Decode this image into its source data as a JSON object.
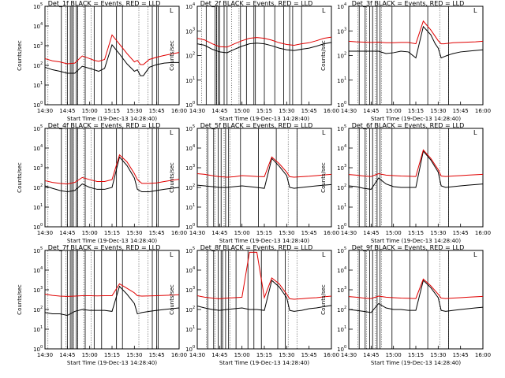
{
  "start_time_label": "Start Time (19-Dec-13 14:28:40)",
  "ylabel": "Counts/sec",
  "xticks": [
    "14:30",
    "14:45",
    "15:00",
    "15:15",
    "15:30",
    "15:45",
    "16:00"
  ],
  "legend_glyph": "L",
  "colors": {
    "events": "#000000",
    "lld": "#e00000",
    "frame": "#000000",
    "background": "#ffffff"
  },
  "chart_data": [
    {
      "type": "line",
      "title": "Det_1f BLACK = Events, RED = LLD",
      "ylim_log10": [
        0,
        5
      ],
      "ytick_exponents": [
        0,
        1,
        2,
        3,
        4,
        5
      ],
      "x_minutes": [
        0,
        5,
        10,
        15,
        20,
        25,
        30,
        33,
        36,
        40,
        45,
        50,
        55,
        60,
        62,
        64,
        66,
        70,
        75,
        80,
        85,
        90
      ],
      "series": [
        {
          "name": "Events",
          "values": [
            80,
            60,
            50,
            40,
            40,
            90,
            70,
            60,
            50,
            70,
            1100,
            380,
            120,
            50,
            60,
            30,
            30,
            80,
            110,
            130,
            140,
            140
          ]
        },
        {
          "name": "LLD",
          "values": [
            220,
            170,
            150,
            120,
            130,
            300,
            220,
            180,
            160,
            200,
            3500,
            1200,
            400,
            150,
            180,
            110,
            110,
            200,
            260,
            320,
            380,
            450
          ]
        }
      ],
      "shaded": [
        [
          2,
          14
        ],
        [
          19,
          22
        ],
        [
          26,
          31
        ],
        [
          63,
          69
        ]
      ],
      "vlines": [
        11,
        15,
        17,
        18,
        19,
        21,
        22,
        27,
        33,
        38,
        48,
        52,
        72,
        75,
        76
      ]
    },
    {
      "type": "line",
      "title": "Det_2f BLACK = Events, RED = LLD",
      "ylim_log10": [
        0,
        4
      ],
      "ytick_exponents": [
        0,
        1,
        2,
        3,
        4
      ],
      "x_minutes": [
        0,
        5,
        10,
        15,
        20,
        25,
        30,
        35,
        40,
        45,
        50,
        55,
        60,
        65,
        70,
        75,
        80,
        85,
        90
      ],
      "series": [
        {
          "name": "Events",
          "values": [
            300,
            260,
            180,
            140,
            130,
            180,
            240,
            300,
            320,
            300,
            250,
            200,
            170,
            160,
            180,
            200,
            240,
            300,
            340
          ]
        },
        {
          "name": "LLD",
          "values": [
            500,
            430,
            300,
            230,
            220,
            300,
            400,
            500,
            540,
            500,
            420,
            330,
            280,
            260,
            300,
            330,
            400,
            500,
            560
          ]
        }
      ],
      "shaded": [
        [
          3,
          13
        ],
        [
          23,
          28
        ]
      ],
      "vlines": [
        6,
        12,
        13,
        14,
        15,
        18,
        20,
        29,
        33,
        38,
        39,
        45,
        52,
        58,
        62,
        64,
        70
      ]
    },
    {
      "type": "line",
      "title": "Det_3f BLACK = Events, RED = LLD",
      "ylim_log10": [
        0,
        4
      ],
      "ytick_exponents": [
        0,
        1,
        2,
        3,
        4
      ],
      "x_minutes": [
        0,
        5,
        10,
        15,
        20,
        25,
        30,
        35,
        40,
        45,
        50,
        55,
        58,
        60,
        62,
        64,
        66,
        68,
        70,
        75,
        80,
        85,
        90
      ],
      "series": [
        {
          "name": "Events",
          "values": [
            150,
            150,
            150,
            150,
            150,
            120,
            130,
            150,
            140,
            80,
            1500,
            700,
            300,
            200,
            80,
            90,
            100,
            110,
            120,
            140,
            150,
            160,
            170
          ]
        },
        {
          "name": "LLD",
          "values": [
            380,
            360,
            350,
            340,
            350,
            330,
            330,
            340,
            340,
            300,
            2500,
            1100,
            600,
            400,
            300,
            300,
            310,
            320,
            330,
            340,
            350,
            360,
            380
          ]
        }
      ],
      "shaded": [
        [
          6,
          12
        ],
        [
          18,
          22
        ],
        [
          61,
          67
        ]
      ],
      "vlines": [
        7,
        11,
        14,
        16,
        19,
        21,
        29,
        41,
        53,
        67
      ]
    },
    {
      "type": "line",
      "title": "Det_4f BLACK = Events, RED = LLD",
      "ylim_log10": [
        0,
        5
      ],
      "ytick_exponents": [
        0,
        1,
        2,
        3,
        4,
        5
      ],
      "x_minutes": [
        0,
        5,
        10,
        15,
        20,
        25,
        30,
        35,
        40,
        45,
        50,
        55,
        60,
        62,
        65,
        70,
        75,
        80,
        85,
        90
      ],
      "series": [
        {
          "name": "Events",
          "values": [
            120,
            90,
            70,
            60,
            70,
            150,
            100,
            80,
            80,
            100,
            3500,
            1300,
            300,
            80,
            60,
            60,
            70,
            80,
            90,
            100
          ]
        },
        {
          "name": "LLD",
          "values": [
            220,
            180,
            160,
            150,
            180,
            320,
            250,
            200,
            200,
            250,
            4500,
            2000,
            500,
            250,
            160,
            160,
            170,
            200,
            230,
            260
          ]
        }
      ],
      "shaded": [
        [
          2,
          14
        ],
        [
          19,
          22
        ],
        [
          26,
          31
        ],
        [
          63,
          69
        ]
      ],
      "vlines": [
        11,
        15,
        17,
        18,
        19,
        21,
        22,
        27,
        33,
        38,
        48,
        52,
        72,
        75,
        76
      ]
    },
    {
      "type": "line",
      "title": "Det_5f BLACK = Events, RED = LLD",
      "ylim_log10": [
        0,
        5
      ],
      "ytick_exponents": [
        0,
        1,
        2,
        3,
        4,
        5
      ],
      "x_minutes": [
        0,
        5,
        10,
        15,
        20,
        25,
        30,
        35,
        40,
        45,
        50,
        55,
        60,
        62,
        65,
        70,
        75,
        80,
        85,
        90
      ],
      "series": [
        {
          "name": "Events",
          "values": [
            130,
            120,
            110,
            100,
            100,
            110,
            120,
            110,
            100,
            90,
            3000,
            1200,
            400,
            100,
            90,
            100,
            110,
            120,
            130,
            140
          ]
        },
        {
          "name": "LLD",
          "values": [
            500,
            460,
            400,
            350,
            330,
            350,
            400,
            380,
            360,
            350,
            3500,
            1600,
            600,
            350,
            330,
            350,
            370,
            400,
            430,
            460
          ]
        }
      ],
      "shaded": [
        [
          6,
          12
        ],
        [
          18,
          22
        ],
        [
          61,
          67
        ]
      ],
      "vlines": [
        7,
        11,
        14,
        16,
        19,
        21,
        29,
        41,
        53,
        67
      ]
    },
    {
      "type": "line",
      "title": "Det_6f BLACK = Events, RED = LLD",
      "ylim_log10": [
        0,
        5
      ],
      "ytick_exponents": [
        0,
        1,
        2,
        3,
        4,
        5
      ],
      "x_minutes": [
        0,
        5,
        10,
        15,
        20,
        25,
        30,
        35,
        40,
        45,
        50,
        55,
        60,
        62,
        65,
        70,
        75,
        80,
        85,
        90
      ],
      "series": [
        {
          "name": "Events",
          "values": [
            120,
            110,
            90,
            80,
            300,
            150,
            110,
            100,
            100,
            100,
            7000,
            2500,
            600,
            120,
            100,
            110,
            120,
            130,
            140,
            150
          ]
        },
        {
          "name": "LLD",
          "values": [
            450,
            420,
            380,
            360,
            500,
            420,
            400,
            380,
            370,
            360,
            8000,
            3000,
            800,
            380,
            360,
            380,
            400,
            420,
            440,
            460
          ]
        }
      ],
      "shaded": [
        [
          6,
          12
        ],
        [
          18,
          22
        ],
        [
          61,
          67
        ]
      ],
      "vlines": [
        7,
        11,
        14,
        16,
        19,
        21,
        29,
        41,
        53,
        67
      ]
    },
    {
      "type": "line",
      "title": "Det_7f BLACK = Events, RED = LLD",
      "ylim_log10": [
        0,
        5
      ],
      "ytick_exponents": [
        0,
        1,
        2,
        3,
        4,
        5
      ],
      "x_minutes": [
        0,
        5,
        10,
        15,
        20,
        25,
        30,
        35,
        40,
        45,
        50,
        55,
        60,
        62,
        65,
        70,
        75,
        80,
        85,
        90
      ],
      "series": [
        {
          "name": "Events",
          "values": [
            70,
            60,
            60,
            50,
            80,
            100,
            90,
            90,
            90,
            80,
            1500,
            600,
            200,
            60,
            70,
            80,
            90,
            100,
            110,
            120
          ]
        },
        {
          "name": "LLD",
          "values": [
            600,
            520,
            480,
            460,
            480,
            500,
            500,
            490,
            500,
            500,
            2000,
            1200,
            700,
            500,
            480,
            490,
            500,
            520,
            540,
            560
          ]
        }
      ],
      "shaded": [
        [
          2,
          14
        ],
        [
          19,
          22
        ],
        [
          26,
          31
        ],
        [
          63,
          69
        ]
      ],
      "vlines": [
        11,
        15,
        17,
        18,
        19,
        21,
        22,
        27,
        33,
        38,
        48,
        52,
        72,
        75,
        76
      ]
    },
    {
      "type": "line",
      "title": "Det_8f BLACK = Events, RED = LLD",
      "ylim_log10": [
        0,
        5
      ],
      "ytick_exponents": [
        0,
        1,
        2,
        3,
        4,
        5
      ],
      "x_minutes": [
        0,
        5,
        10,
        15,
        20,
        25,
        30,
        35,
        40,
        45,
        50,
        55,
        60,
        62,
        65,
        70,
        75,
        80,
        85,
        90
      ],
      "series": [
        {
          "name": "Events",
          "values": [
            150,
            120,
            100,
            90,
            100,
            110,
            120,
            100,
            100,
            90,
            3000,
            1400,
            400,
            90,
            80,
            90,
            110,
            120,
            140,
            160
          ]
        },
        {
          "name": "LLD",
          "values": [
            500,
            420,
            380,
            350,
            380,
            400,
            420,
            80000,
            80000,
            400,
            4000,
            2000,
            600,
            350,
            330,
            350,
            380,
            400,
            440,
            480
          ]
        }
      ],
      "shaded": [
        [
          6,
          12
        ],
        [
          17,
          22
        ],
        [
          61,
          67
        ]
      ],
      "vlines": [
        7,
        11,
        14,
        16,
        17,
        19,
        21,
        26,
        34,
        38,
        43,
        54,
        59
      ]
    },
    {
      "type": "line",
      "title": "Det_9f BLACK = Events, RED = LLD",
      "ylim_log10": [
        0,
        5
      ],
      "ytick_exponents": [
        0,
        1,
        2,
        3,
        4,
        5
      ],
      "x_minutes": [
        0,
        5,
        10,
        15,
        20,
        25,
        30,
        35,
        40,
        45,
        50,
        55,
        60,
        62,
        65,
        70,
        75,
        80,
        85,
        90
      ],
      "series": [
        {
          "name": "Events",
          "values": [
            100,
            90,
            80,
            70,
            200,
            120,
            100,
            100,
            90,
            90,
            3000,
            1300,
            400,
            90,
            80,
            90,
            100,
            110,
            120,
            130
          ]
        },
        {
          "name": "LLD",
          "values": [
            450,
            420,
            380,
            360,
            480,
            420,
            400,
            380,
            370,
            360,
            3500,
            1600,
            600,
            380,
            360,
            380,
            400,
            420,
            440,
            460
          ]
        }
      ],
      "shaded": [
        [
          6,
          12
        ],
        [
          18,
          22
        ],
        [
          61,
          67
        ]
      ],
      "vlines": [
        7,
        11,
        14,
        16,
        19,
        21,
        29,
        41,
        53,
        67
      ]
    }
  ]
}
